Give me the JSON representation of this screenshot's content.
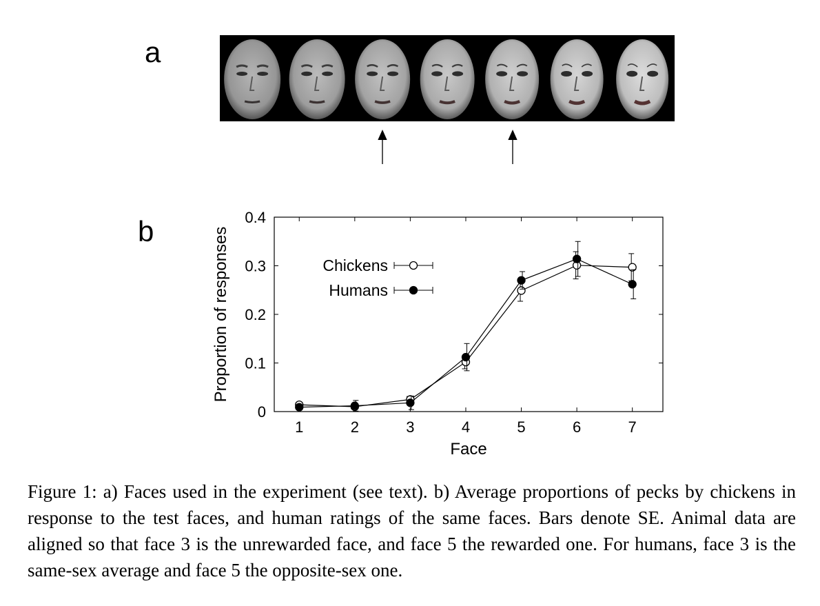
{
  "panel_labels": {
    "a": "a",
    "b": "b"
  },
  "faces": {
    "count": 7,
    "arrows_under_faces": [
      3,
      5
    ]
  },
  "chart_data": {
    "type": "line",
    "x": [
      1,
      2,
      3,
      4,
      5,
      6,
      7
    ],
    "xlabel": "Face",
    "ylabel": "Proportion of responses",
    "xlim": [
      0.55,
      7.55
    ],
    "ylim": [
      0,
      0.4
    ],
    "xticks": [
      "1",
      "2",
      "3",
      "4",
      "5",
      "6",
      "7"
    ],
    "yticks": [
      "0",
      "0.1",
      "0.2",
      "0.3",
      "0.4"
    ],
    "legend_position": "upper-left",
    "series": [
      {
        "name": "Chickens",
        "marker": "open-circle",
        "values": [
          0.014,
          0.01,
          0.025,
          0.102,
          0.249,
          0.301,
          0.297
        ],
        "se": [
          0.004,
          0.004,
          0.006,
          0.014,
          0.022,
          0.028,
          0.028
        ]
      },
      {
        "name": "Humans",
        "marker": "filled-circle",
        "values": [
          0.009,
          0.012,
          0.018,
          0.112,
          0.27,
          0.314,
          0.262
        ],
        "se": [
          0.003,
          0.011,
          0.014,
          0.028,
          0.018,
          0.036,
          0.03
        ]
      }
    ]
  },
  "caption": "Figure 1: a) Faces used in the experiment (see text). b) Average proportions of pecks by chickens in response to the test faces, and human ratings of the same faces. Bars denote SE. Animal data are aligned so that face 3 is the unrewarded face, and face 5 the rewarded one. For humans, face 3 is the same-sex average and face 5 the opposite-sex one."
}
